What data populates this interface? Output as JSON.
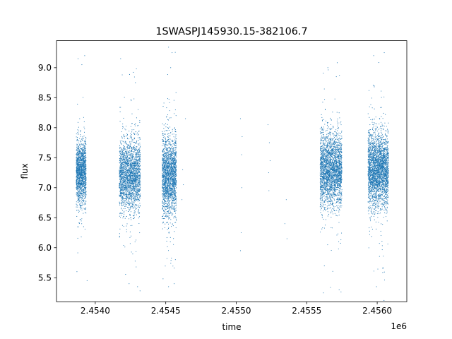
{
  "chart_data": {
    "type": "scatter",
    "title": "1SWASPJ145930.15-382106.7",
    "xlabel": "time",
    "ylabel": "flux",
    "x_offset_label": "1e6",
    "x_scale": 1000000,
    "xlim": [
      2453725,
      2456210
    ],
    "ylim": [
      5.1,
      9.45
    ],
    "x_ticks": [
      2.454,
      2.4545,
      2.455,
      2.4555,
      2.456
    ],
    "x_tick_labels": [
      "2.4540",
      "2.4545",
      "2.4550",
      "2.4555",
      "2.4560"
    ],
    "y_ticks": [
      5.5,
      6.0,
      6.5,
      7.0,
      7.5,
      8.0,
      8.5,
      9.0
    ],
    "y_tick_labels": [
      "5.5",
      "6.0",
      "6.5",
      "7.0",
      "7.5",
      "8.0",
      "8.5",
      "9.0"
    ],
    "grid": false,
    "legend": "none",
    "marker_color": "#1f77b4",
    "series": [
      {
        "point_clusters": [
          {
            "x_range": [
              2453865,
              2453935
            ],
            "median": 7.25,
            "spread": 0.26,
            "count": 1500
          },
          {
            "x_range": [
              2454170,
              2454320
            ],
            "median": 7.2,
            "spread": 0.3,
            "count": 2200
          },
          {
            "x_range": [
              2454475,
              2454575
            ],
            "median": 7.2,
            "spread": 0.32,
            "count": 2000
          },
          {
            "x_range": [
              2455595,
              2455750
            ],
            "median": 7.3,
            "spread": 0.3,
            "count": 2600
          },
          {
            "x_range": [
              2455935,
              2456080
            ],
            "median": 7.3,
            "spread": 0.3,
            "count": 2800
          }
        ],
        "isolated_points": [
          [
            2453878,
            9.15
          ],
          [
            2453905,
            9.05
          ],
          [
            2453925,
            9.2
          ],
          [
            2453942,
            5.45
          ],
          [
            2453870,
            5.6
          ],
          [
            2454180,
            9.15
          ],
          [
            2454255,
            8.45
          ],
          [
            2454300,
            5.35
          ],
          [
            2454285,
            8.75
          ],
          [
            2454240,
            5.4
          ],
          [
            2454545,
            9.25
          ],
          [
            2454520,
            5.35
          ],
          [
            2454560,
            5.4
          ],
          [
            2454535,
            9.0
          ],
          [
            2454620,
            7.3
          ],
          [
            2454615,
            6.8
          ],
          [
            2454640,
            8.15
          ],
          [
            2454625,
            7.05
          ],
          [
            2455030,
            8.15
          ],
          [
            2455038,
            7.55
          ],
          [
            2455042,
            7.85
          ],
          [
            2455040,
            7.0
          ],
          [
            2455035,
            6.25
          ],
          [
            2455030,
            5.95
          ],
          [
            2455225,
            8.05
          ],
          [
            2455235,
            7.75
          ],
          [
            2455240,
            7.45
          ],
          [
            2455230,
            7.25
          ],
          [
            2455232,
            6.95
          ],
          [
            2455355,
            6.8
          ],
          [
            2455345,
            6.4
          ],
          [
            2455360,
            6.15
          ],
          [
            2455650,
            9.0
          ],
          [
            2455710,
            8.85
          ],
          [
            2455625,
            5.7
          ],
          [
            2455730,
            5.3
          ],
          [
            2455975,
            9.2
          ],
          [
            2456050,
            9.25
          ],
          [
            2455995,
            5.35
          ],
          [
            2456040,
            5.65
          ]
        ]
      }
    ]
  }
}
